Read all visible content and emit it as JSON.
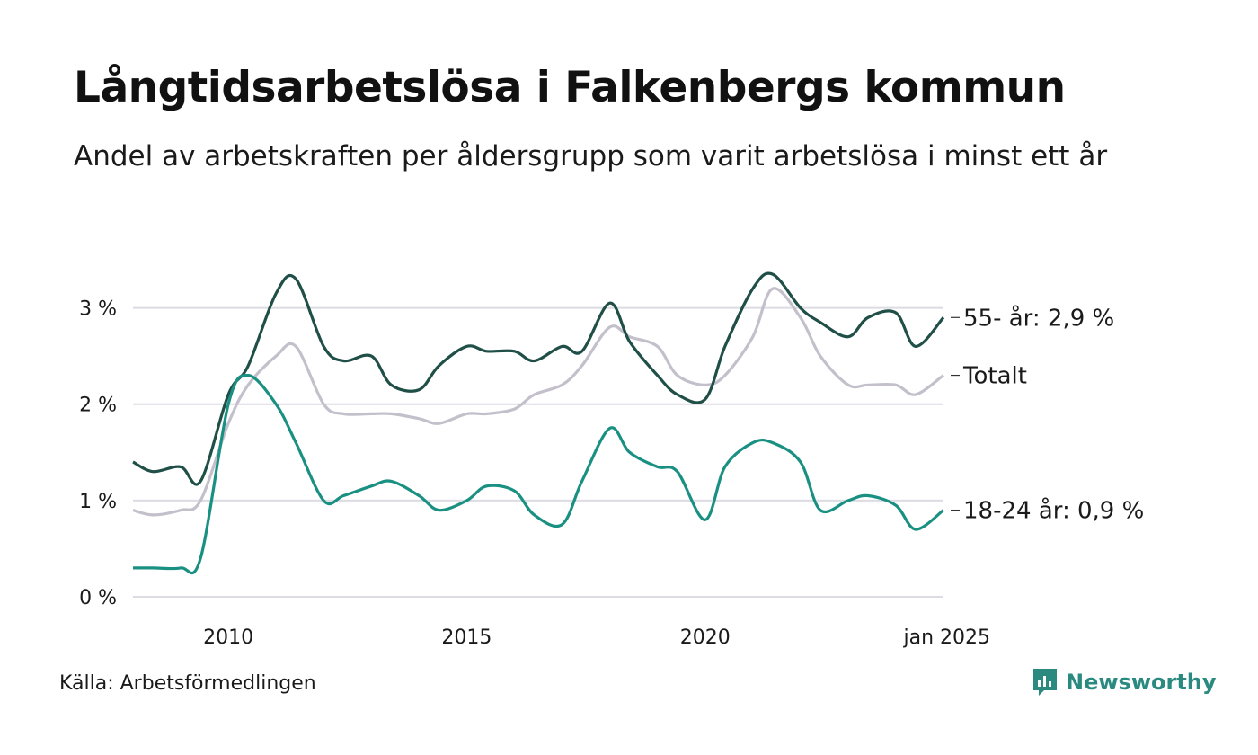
{
  "header": {
    "title": "Långtidsarbetslösa i Falkenbergs kommun",
    "subtitle": "Andel av arbetskraften per åldersgrupp som varit arbetslösa i minst ett år"
  },
  "footer": {
    "source": "Källa: Arbetsförmedlingen",
    "brand": "Newsworthy",
    "brand_icon": "bar-chart-icon"
  },
  "colors": {
    "series_55": "#1f4f47",
    "series_total": "#c3c0cb",
    "series_18_24": "#1a9082",
    "grid": "#dcdce2",
    "brand": "#2a8a80"
  },
  "chart_data": {
    "type": "line",
    "title": "Långtidsarbetslösa i Falkenbergs kommun",
    "subtitle": "Andel av arbetskraften per åldersgrupp som varit arbetslösa i minst ett år",
    "xlim": [
      "2008-01",
      "2025-01"
    ],
    "ylim": [
      0,
      3.5
    ],
    "y_ticks": [
      0,
      1,
      2,
      3
    ],
    "y_tick_labels": [
      "0 %",
      "1 %",
      "2 %",
      "3 %"
    ],
    "x_ticks": [
      "2010-01",
      "2015-01",
      "2020-01",
      "2025-01"
    ],
    "x_tick_labels": [
      "2010",
      "2015",
      "2020",
      "jan 2025"
    ],
    "grid": true,
    "series": [
      {
        "name": "Totalt",
        "end_label": "Totalt",
        "x": [
          "2008-01",
          "2008-06",
          "2009-01",
          "2009-06",
          "2010-01",
          "2010-06",
          "2011-01",
          "2011-06",
          "2012-01",
          "2012-06",
          "2013-01",
          "2013-06",
          "2014-01",
          "2014-06",
          "2015-01",
          "2015-06",
          "2016-01",
          "2016-06",
          "2017-01",
          "2017-06",
          "2018-01",
          "2018-06",
          "2019-01",
          "2019-06",
          "2020-01",
          "2020-06",
          "2021-01",
          "2021-06",
          "2022-01",
          "2022-06",
          "2023-01",
          "2023-06",
          "2024-01",
          "2024-06",
          "2025-01"
        ],
        "values": [
          0.9,
          0.85,
          0.9,
          1.0,
          1.8,
          2.2,
          2.5,
          2.6,
          2.0,
          1.9,
          1.9,
          1.9,
          1.85,
          1.8,
          1.9,
          1.9,
          1.95,
          2.1,
          2.2,
          2.4,
          2.8,
          2.7,
          2.6,
          2.3,
          2.2,
          2.3,
          2.7,
          3.2,
          2.9,
          2.5,
          2.2,
          2.2,
          2.2,
          2.1,
          2.3
        ]
      },
      {
        "name": "55- år",
        "end_label": "55- år: 2,9 %",
        "x": [
          "2008-01",
          "2008-06",
          "2009-01",
          "2009-06",
          "2010-01",
          "2010-06",
          "2011-01",
          "2011-06",
          "2012-01",
          "2012-06",
          "2013-01",
          "2013-06",
          "2014-01",
          "2014-06",
          "2015-01",
          "2015-06",
          "2016-01",
          "2016-06",
          "2017-01",
          "2017-06",
          "2018-01",
          "2018-06",
          "2019-01",
          "2019-06",
          "2020-01",
          "2020-06",
          "2021-01",
          "2021-06",
          "2022-01",
          "2022-06",
          "2023-01",
          "2023-06",
          "2024-01",
          "2024-06",
          "2025-01"
        ],
        "values": [
          1.4,
          1.3,
          1.35,
          1.2,
          2.1,
          2.4,
          3.15,
          3.3,
          2.6,
          2.45,
          2.5,
          2.2,
          2.15,
          2.4,
          2.6,
          2.55,
          2.55,
          2.45,
          2.6,
          2.55,
          3.05,
          2.65,
          2.3,
          2.1,
          2.05,
          2.6,
          3.2,
          3.35,
          3.0,
          2.85,
          2.7,
          2.9,
          2.95,
          2.6,
          2.9
        ]
      },
      {
        "name": "18-24 år",
        "end_label": "18-24 år: 0,9 %",
        "x": [
          "2008-01",
          "2008-06",
          "2009-01",
          "2009-06",
          "2010-01",
          "2010-06",
          "2011-01",
          "2011-06",
          "2012-01",
          "2012-06",
          "2013-01",
          "2013-06",
          "2014-01",
          "2014-06",
          "2015-01",
          "2015-06",
          "2016-01",
          "2016-06",
          "2017-01",
          "2017-06",
          "2018-01",
          "2018-06",
          "2019-01",
          "2019-06",
          "2020-01",
          "2020-06",
          "2021-01",
          "2021-06",
          "2022-01",
          "2022-06",
          "2023-01",
          "2023-06",
          "2024-01",
          "2024-06",
          "2025-01"
        ],
        "values": [
          0.3,
          0.3,
          0.3,
          0.4,
          2.0,
          2.3,
          2.0,
          1.6,
          1.0,
          1.05,
          1.15,
          1.2,
          1.05,
          0.9,
          1.0,
          1.15,
          1.1,
          0.85,
          0.75,
          1.2,
          1.75,
          1.5,
          1.35,
          1.3,
          0.8,
          1.35,
          1.6,
          1.6,
          1.4,
          0.9,
          1.0,
          1.05,
          0.95,
          0.7,
          0.9
        ]
      }
    ]
  }
}
